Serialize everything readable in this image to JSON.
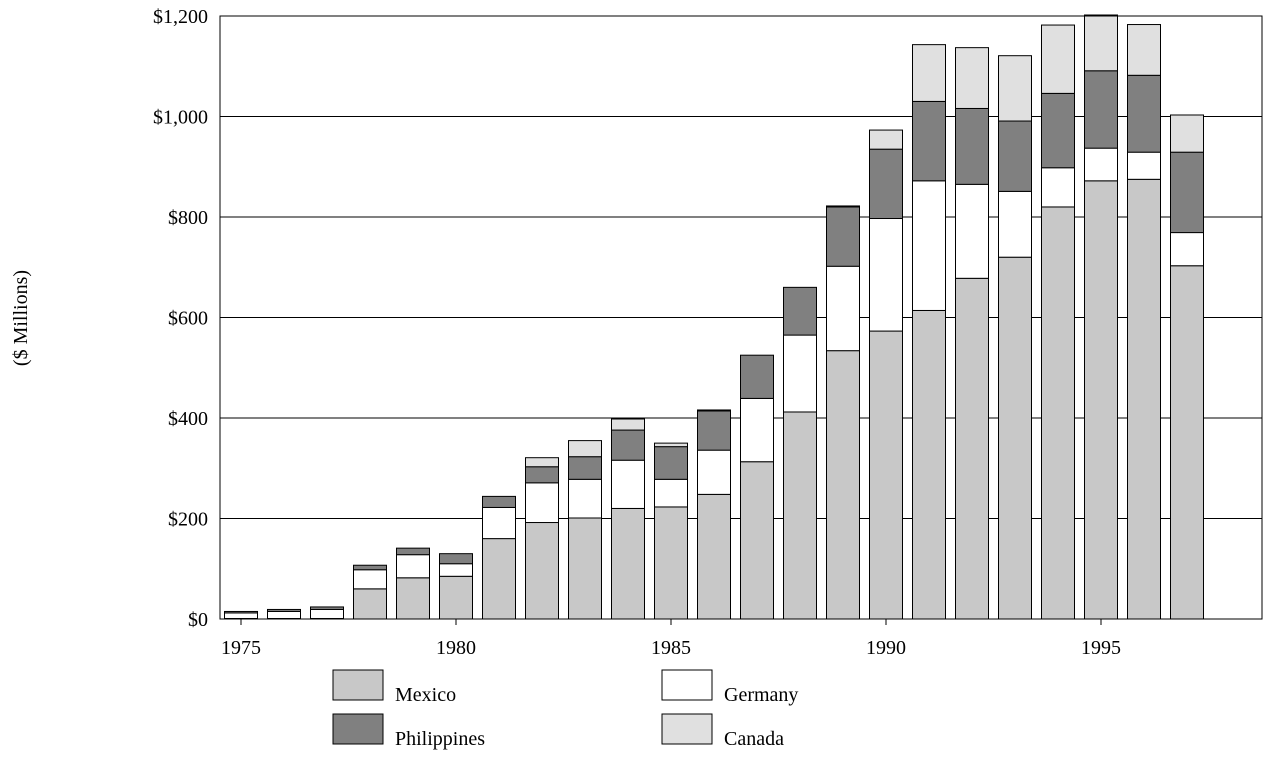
{
  "chart_data": {
    "type": "bar",
    "stacked": true,
    "title": "",
    "xlabel": "",
    "ylabel": "($ Millions)",
    "ylim": [
      0,
      1200
    ],
    "y_ticks": [
      0,
      200,
      400,
      600,
      800,
      1000,
      1200
    ],
    "y_tick_labels": [
      "$0",
      "$200",
      "$400",
      "$600",
      "$800",
      "$1,000",
      "$1,200"
    ],
    "x_tick_labels": [
      "1975",
      "1980",
      "1985",
      "1990",
      "1995"
    ],
    "categories": [
      "1975",
      "1976",
      "1977",
      "1978",
      "1979",
      "1980",
      "1981",
      "1982",
      "1983",
      "1984",
      "1985",
      "1986",
      "1987",
      "1988",
      "1989",
      "1990",
      "1991",
      "1992",
      "1993",
      "1994",
      "1995",
      "1996",
      "1997"
    ],
    "grid": "horizontal",
    "legend_position": "bottom",
    "series": [
      {
        "name": "Mexico",
        "color": "#c8c8c8",
        "values": [
          1,
          1,
          1,
          60,
          82,
          85,
          160,
          192,
          201,
          220,
          223,
          248,
          313,
          412,
          534,
          573,
          614,
          678,
          720,
          820,
          872,
          875,
          703
        ]
      },
      {
        "name": "Germany",
        "color": "#ffffff",
        "values": [
          11,
          14,
          18,
          38,
          46,
          25,
          62,
          79,
          77,
          96,
          55,
          88,
          126,
          153,
          168,
          224,
          258,
          187,
          131,
          78,
          65,
          54,
          66
        ]
      },
      {
        "name": "Philippines",
        "color": "#808080",
        "values": [
          3,
          4,
          5,
          9,
          13,
          20,
          22,
          32,
          45,
          60,
          65,
          78,
          86,
          95,
          118,
          138,
          158,
          151,
          140,
          148,
          154,
          153,
          160
        ]
      },
      {
        "name": "Canada",
        "color": "#e0e0e0",
        "values": [
          0,
          0,
          0,
          0,
          0,
          0,
          0,
          18,
          32,
          22,
          7,
          2,
          0,
          0,
          2,
          38,
          113,
          121,
          130,
          136,
          111,
          101,
          74
        ]
      }
    ]
  }
}
